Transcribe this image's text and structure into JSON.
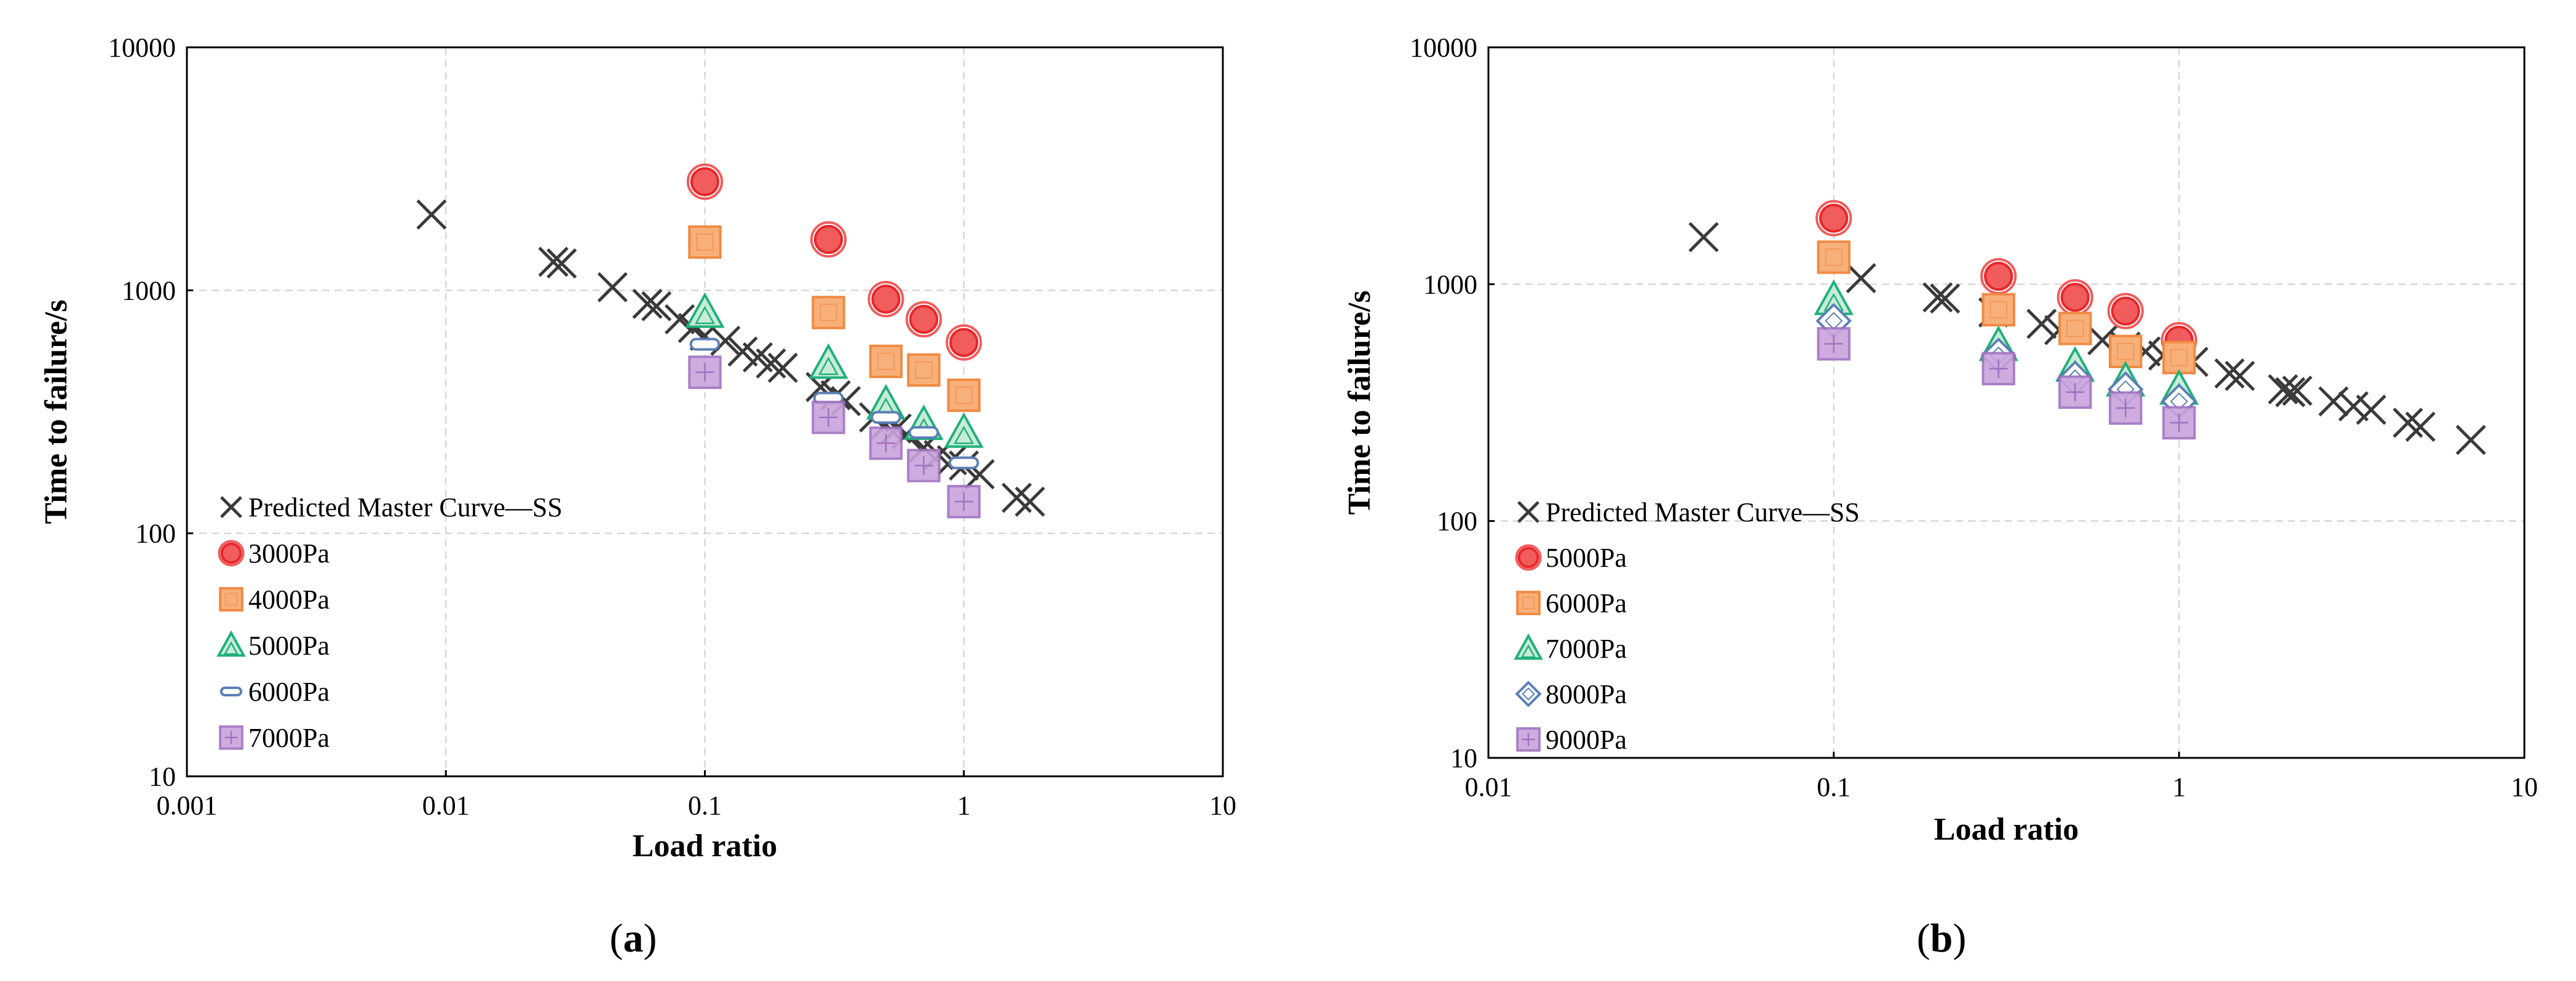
{
  "chart_data": [
    {
      "type": "scatter",
      "panel": "a",
      "caption": {
        "open": "(",
        "letter": "a",
        "close": ")"
      },
      "xlabel": "Load ratio",
      "ylabel": "Time to failure/s",
      "xscale": "log",
      "yscale": "log",
      "xlim": [
        0.001,
        10
      ],
      "ylim": [
        10,
        10000
      ],
      "xticks": [
        {
          "value": 0.001,
          "label": "0.001"
        },
        {
          "value": 0.01,
          "label": "0.01"
        },
        {
          "value": 0.1,
          "label": "0.1"
        },
        {
          "value": 1,
          "label": "1"
        },
        {
          "value": 10,
          "label": "10"
        }
      ],
      "yticks": [
        {
          "value": 10,
          "label": "10"
        },
        {
          "value": 100,
          "label": "100"
        },
        {
          "value": 1000,
          "label": "1000"
        },
        {
          "value": 10000,
          "label": "10000"
        }
      ],
      "grid": true,
      "legend_position": "bottom-left",
      "series": [
        {
          "name": "Predicted Master Curve—SS",
          "marker": "x",
          "color": "#3a3a3a",
          "points": [
            [
              0.0088,
              2050
            ],
            [
              0.026,
              1310
            ],
            [
              0.028,
              1290
            ],
            [
              0.044,
              1030
            ],
            [
              0.06,
              880
            ],
            [
              0.065,
              860
            ],
            [
              0.08,
              760
            ],
            [
              0.09,
              700
            ],
            [
              0.1,
              650
            ],
            [
              0.12,
              620
            ],
            [
              0.14,
              560
            ],
            [
              0.16,
              530
            ],
            [
              0.18,
              500
            ],
            [
              0.2,
              480
            ],
            [
              0.28,
              400
            ],
            [
              0.32,
              370
            ],
            [
              0.35,
              350
            ],
            [
              0.45,
              300
            ],
            [
              0.5,
              280
            ],
            [
              0.55,
              270
            ],
            [
              0.6,
              255
            ],
            [
              0.7,
              225
            ],
            [
              0.8,
              210
            ],
            [
              0.9,
              200
            ],
            [
              1.0,
              190
            ],
            [
              1.15,
              175
            ],
            [
              1.6,
              140
            ],
            [
              1.8,
              135
            ]
          ]
        },
        {
          "name": "3000Pa",
          "marker": "circle",
          "color": "#e8262b",
          "fill": "#f15c5c",
          "points": [
            [
              0.1,
              2800
            ],
            [
              0.3,
              1620
            ],
            [
              0.5,
              920
            ],
            [
              0.7,
              760
            ],
            [
              1.0,
              610
            ]
          ]
        },
        {
          "name": "4000Pa",
          "marker": "square",
          "color": "#f08a42",
          "fill": "#f8b07a",
          "points": [
            [
              0.1,
              1580
            ],
            [
              0.3,
              810
            ],
            [
              0.5,
              510
            ],
            [
              0.7,
              470
            ],
            [
              1.0,
              370
            ]
          ]
        },
        {
          "name": "5000Pa",
          "marker": "triangle",
          "color": "#1fb07a",
          "fill": "#c7ecd8",
          "points": [
            [
              0.1,
              810
            ],
            [
              0.3,
              500
            ],
            [
              0.5,
              340
            ],
            [
              0.7,
              280
            ],
            [
              1.0,
              260
            ]
          ]
        },
        {
          "name": "6000Pa",
          "marker": "dash",
          "color": "#5b7fb5",
          "fill": "#ffffff",
          "points": [
            [
              0.1,
              600
            ],
            [
              0.3,
              360
            ],
            [
              0.5,
              300
            ],
            [
              0.7,
              260
            ],
            [
              1.0,
              195
            ]
          ]
        },
        {
          "name": "7000Pa",
          "marker": "square-plus",
          "color": "#a072c0",
          "fill": "#c9a4dc",
          "points": [
            [
              0.1,
              460
            ],
            [
              0.3,
              300
            ],
            [
              0.5,
              235
            ],
            [
              0.7,
              190
            ],
            [
              1.0,
              135
            ]
          ]
        }
      ]
    },
    {
      "type": "scatter",
      "panel": "b",
      "caption": {
        "open": "(",
        "letter": "b",
        "close": ")"
      },
      "xlabel": "Load ratio",
      "ylabel": "Time to failure/s",
      "xscale": "log",
      "yscale": "log",
      "xlim": [
        0.01,
        10
      ],
      "ylim": [
        10,
        10000
      ],
      "xticks": [
        {
          "value": 0.01,
          "label": "0.01"
        },
        {
          "value": 0.1,
          "label": "0.1"
        },
        {
          "value": 1,
          "label": "1"
        },
        {
          "value": 10,
          "label": "10"
        }
      ],
      "yticks": [
        {
          "value": 10,
          "label": "10"
        },
        {
          "value": 100,
          "label": "100"
        },
        {
          "value": 1000,
          "label": "1000"
        },
        {
          "value": 10000,
          "label": "10000"
        }
      ],
      "grid": true,
      "legend_position": "bottom-left",
      "series": [
        {
          "name": "Predicted Master Curve—SS",
          "marker": "x",
          "color": "#3a3a3a",
          "points": [
            [
              0.042,
              1580
            ],
            [
              0.12,
              1060
            ],
            [
              0.2,
              880
            ],
            [
              0.21,
              870
            ],
            [
              0.29,
              760
            ],
            [
              0.4,
              680
            ],
            [
              0.45,
              640
            ],
            [
              0.6,
              580
            ],
            [
              0.7,
              545
            ],
            [
              0.8,
              520
            ],
            [
              0.9,
              500
            ],
            [
              1.0,
              480
            ],
            [
              1.1,
              470
            ],
            [
              1.4,
              420
            ],
            [
              1.5,
              410
            ],
            [
              2.0,
              360
            ],
            [
              2.1,
              350
            ],
            [
              2.2,
              355
            ],
            [
              2.8,
              320
            ],
            [
              3.2,
              305
            ],
            [
              3.6,
              295
            ],
            [
              4.6,
              260
            ],
            [
              5.0,
              250
            ],
            [
              7.0,
              220
            ]
          ]
        },
        {
          "name": "5000Pa",
          "marker": "circle",
          "color": "#e8262b",
          "fill": "#f15c5c",
          "points": [
            [
              0.1,
              1900
            ],
            [
              0.3,
              1080
            ],
            [
              0.5,
              880
            ],
            [
              0.7,
              770
            ],
            [
              1.0,
              580
            ]
          ]
        },
        {
          "name": "6000Pa",
          "marker": "square",
          "color": "#f08a42",
          "fill": "#f8b07a",
          "points": [
            [
              0.1,
              1300
            ],
            [
              0.3,
              780
            ],
            [
              0.5,
              650
            ],
            [
              0.7,
              520
            ],
            [
              1.0,
              490
            ]
          ]
        },
        {
          "name": "7000Pa",
          "marker": "triangle",
          "color": "#1fb07a",
          "fill": "#c7ecd8",
          "points": [
            [
              0.1,
              860
            ],
            [
              0.3,
              550
            ],
            [
              0.5,
              450
            ],
            [
              0.7,
              390
            ],
            [
              1.0,
              360
            ]
          ]
        },
        {
          "name": "8000Pa",
          "marker": "diamond",
          "color": "#5b7fb5",
          "fill": "#ffffff",
          "points": [
            [
              0.1,
              700
            ],
            [
              0.3,
              500
            ],
            [
              0.5,
              400
            ],
            [
              0.7,
              360
            ],
            [
              1.0,
              320
            ]
          ]
        },
        {
          "name": "9000Pa",
          "marker": "square-plus",
          "color": "#a072c0",
          "fill": "#c9a4dc",
          "points": [
            [
              0.1,
              560
            ],
            [
              0.3,
              440
            ],
            [
              0.5,
              350
            ],
            [
              0.7,
              300
            ],
            [
              1.0,
              260
            ]
          ]
        }
      ]
    }
  ]
}
